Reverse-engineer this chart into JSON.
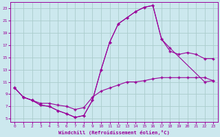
{
  "xlabel": "Windchill (Refroidissement éolien,°C)",
  "background_color": "#cce8ee",
  "grid_color": "#aacccc",
  "line_color": "#990099",
  "xlim": [
    -0.5,
    23.5
  ],
  "ylim": [
    4.5,
    24
  ],
  "xticks": [
    0,
    1,
    2,
    3,
    4,
    5,
    6,
    7,
    8,
    9,
    10,
    11,
    12,
    13,
    14,
    15,
    16,
    17,
    18,
    19,
    20,
    21,
    22,
    23
  ],
  "yticks": [
    5,
    7,
    9,
    11,
    13,
    15,
    17,
    19,
    21,
    23
  ],
  "curve1_x": [
    0,
    1,
    2,
    3,
    4,
    5,
    6,
    7,
    8,
    9,
    10,
    11,
    12,
    13,
    14,
    15,
    16,
    17,
    18,
    22,
    23
  ],
  "curve1_y": [
    10,
    8.5,
    8,
    7.2,
    7.0,
    6.3,
    5.8,
    5.2,
    5.5,
    8.0,
    13.0,
    17.5,
    20.5,
    21.5,
    22.5,
    23.2,
    23.5,
    18.0,
    16.5,
    11.0,
    11.2
  ],
  "curve2_x": [
    0,
    1,
    2,
    3,
    4,
    5,
    6,
    7,
    8,
    9,
    10,
    11,
    12,
    13,
    14,
    15,
    16,
    17,
    18,
    19,
    20,
    21,
    22,
    23
  ],
  "curve2_y": [
    10,
    8.5,
    8,
    7.2,
    7.0,
    6.3,
    5.8,
    5.2,
    5.5,
    8.0,
    13.0,
    17.5,
    20.5,
    21.5,
    22.5,
    23.2,
    23.5,
    18.0,
    16.0,
    15.5,
    15.8,
    15.5,
    14.8,
    14.8
  ],
  "curve3_x": [
    0,
    1,
    2,
    3,
    4,
    5,
    6,
    7,
    8,
    9,
    10,
    11,
    12,
    13,
    14,
    15,
    16,
    17,
    18,
    19,
    20,
    21,
    22,
    23
  ],
  "curve3_y": [
    10,
    8.5,
    8,
    7.5,
    7.5,
    7.2,
    7.0,
    6.5,
    6.8,
    8.5,
    9.5,
    10.0,
    10.5,
    11.0,
    11.0,
    11.2,
    11.5,
    11.7,
    11.7,
    11.7,
    11.7,
    11.7,
    11.7,
    11.2
  ]
}
